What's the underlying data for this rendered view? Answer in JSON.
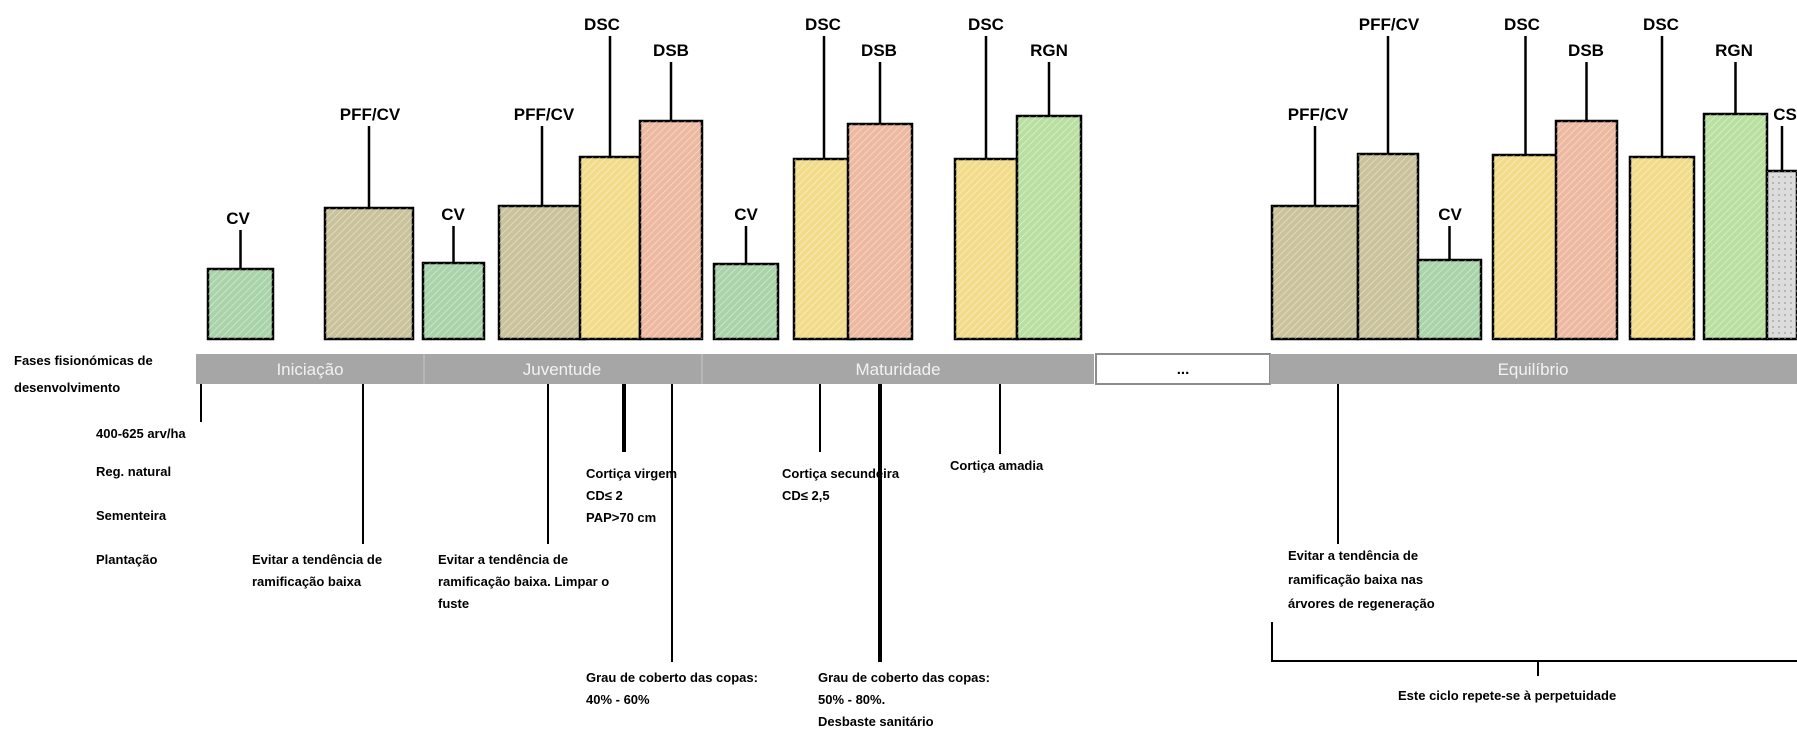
{
  "row_label": [
    "Fases fisionómicas de",
    "desenvolvimento"
  ],
  "phases": [
    {
      "name": "Iniciação"
    },
    {
      "name": "Juventude"
    },
    {
      "name": "Maturidade"
    },
    {
      "name": "..."
    },
    {
      "name": "Equilíbrio"
    }
  ],
  "operation_labels": {
    "CV": "CV",
    "PFF_CV": "PFF/CV",
    "DSC": "DSC",
    "DSB": "DSB",
    "RGN": "RGN",
    "CS": "CS"
  },
  "colors": {
    "CV": "#a9d3a8",
    "PFF_CV": "#c9c29a",
    "DSC": "#f2dc8a",
    "DSB": "#edb9a0",
    "RGN": "#b9e0a0",
    "CS": "#dcdcdc",
    "phase_bar": "#a6a6a6"
  },
  "notes": {
    "density": "400-625 arv/ha",
    "regen": "Reg. natural",
    "seeding": "Sementeira",
    "planting": "Plantação",
    "avoid1": [
      "Evitar a tendência de",
      "ramificação baixa"
    ],
    "avoid2": [
      "Evitar a tendência de",
      "ramificação baixa. Limpar o",
      "fuste"
    ],
    "cork_virgin": [
      "Cortiça virgem",
      "CD≤ 2",
      "PAP>70 cm"
    ],
    "cork_secondary": [
      "Cortiça secundeira",
      "CD≤ 2,5"
    ],
    "cork_reproduction": "Cortiça amadia",
    "canopy1": [
      "Grau de coberto das copas:",
      "40% - 60%"
    ],
    "canopy2": [
      "Grau de coberto das copas:",
      "50% - 80%.",
      "Desbaste sanitário"
    ],
    "avoid3": [
      "Evitar a tendência de",
      "ramificação baixa nas",
      "árvores de regeneração"
    ],
    "cycle": "Este ciclo repete-se à perpetuidade"
  }
}
